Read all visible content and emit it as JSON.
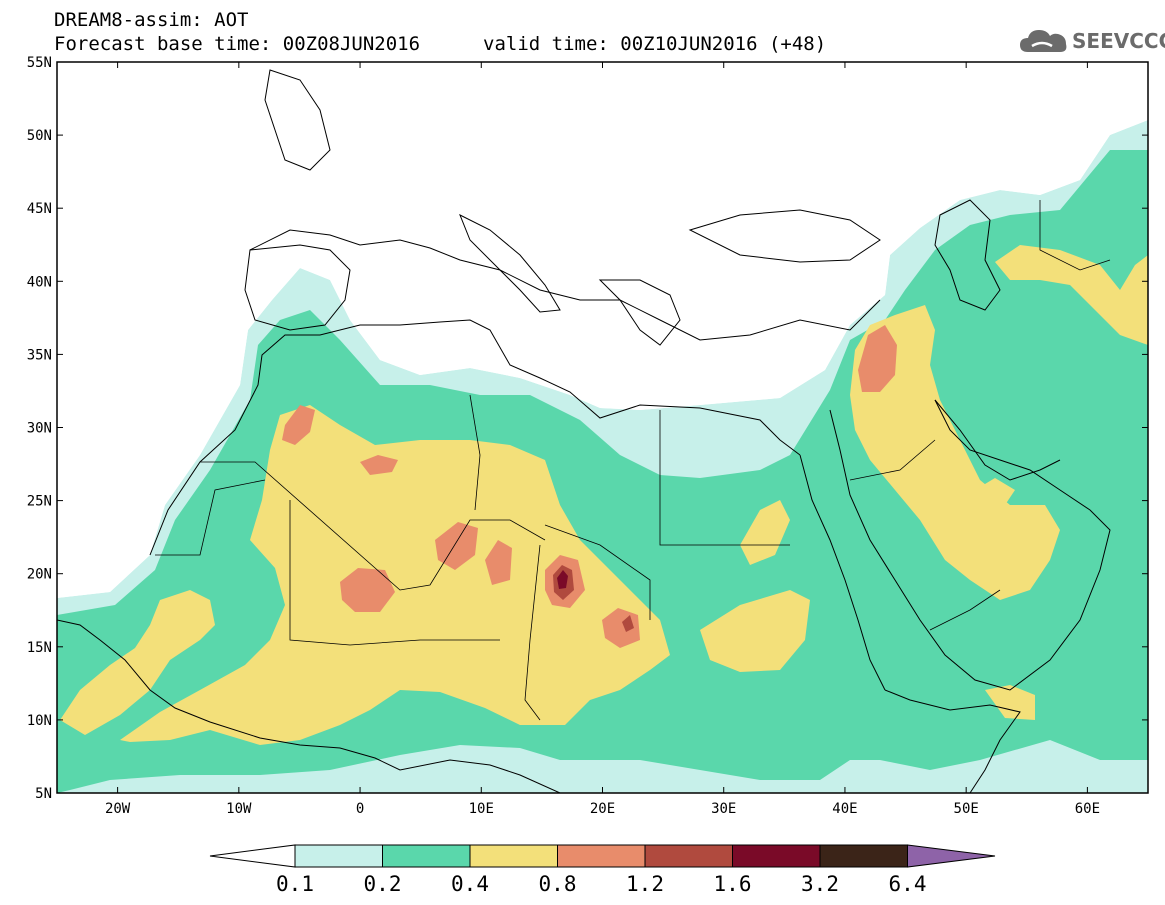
{
  "title": {
    "line1": "DREAM8-assim: AOT",
    "line2": "Forecast base time: 00Z08JUN2016",
    "line3": "valid time: 00Z10JUN2016 (+48)"
  },
  "logo": {
    "text": "SEEVCCC",
    "icon": "cloud-icon",
    "color": "#6b6b6b"
  },
  "map": {
    "lon_range": [
      -25,
      65
    ],
    "lat_range": [
      5,
      55
    ],
    "lat_ticks": [
      "5N",
      "10N",
      "15N",
      "20N",
      "25N",
      "30N",
      "35N",
      "40N",
      "45N",
      "50N",
      "55N"
    ],
    "lon_ticks": [
      "20W",
      "10W",
      "0",
      "10E",
      "20E",
      "30E",
      "40E",
      "50E",
      "60E"
    ]
  },
  "colorbar": {
    "levels": [
      "0.1",
      "0.2",
      "0.4",
      "0.8",
      "1.2",
      "1.6",
      "3.2",
      "6.4"
    ],
    "colors": [
      "#ffffff",
      "#c7f0ea",
      "#5ad7ab",
      "#f3e07a",
      "#e88c6b",
      "#b04a3e",
      "#7a0a28",
      "#3b2418",
      "#8e63a8"
    ]
  }
}
